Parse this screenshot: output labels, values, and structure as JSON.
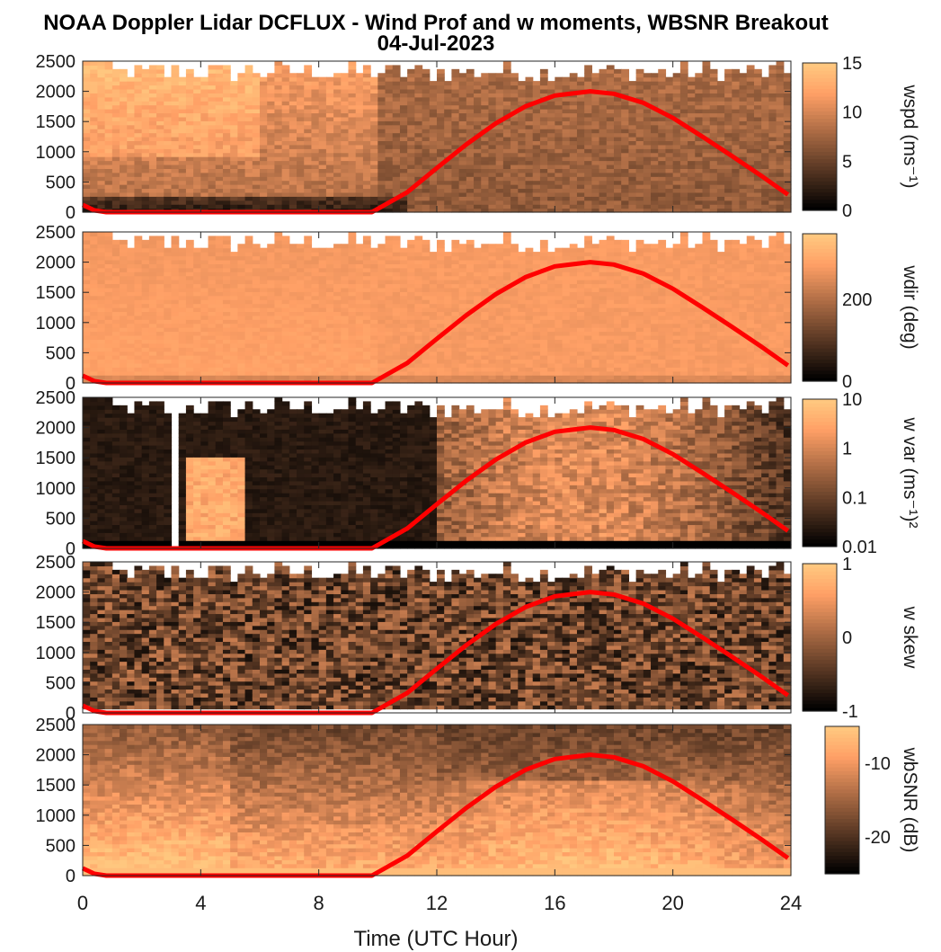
{
  "chart_data": {
    "type": "heatmap",
    "title": "NOAA Doppler Lidar DCFLUX - Wind Prof and w moments, WBSNR Breakout",
    "subtitle": "04-Jul-2023",
    "xlabel": "Time (UTC Hour)",
    "xlim": [
      0,
      24
    ],
    "x_ticks": [
      "0",
      "4",
      "8",
      "12",
      "16",
      "20",
      "24"
    ],
    "ylim": [
      0,
      2500
    ],
    "y_ticks": [
      "0",
      "500",
      "1000",
      "1500",
      "2000",
      "2500"
    ],
    "colormap": "copper",
    "overlay_line": {
      "color": "#ff0000",
      "description_x": [
        0.0,
        0.4,
        0.8,
        2,
        4,
        6,
        8,
        9.8,
        11,
        12,
        13,
        14,
        15,
        16,
        17.2,
        18,
        19,
        20,
        21,
        22,
        23,
        23.9
      ],
      "y": [
        120,
        30,
        0,
        0,
        0,
        0,
        0,
        0,
        330,
        730,
        1120,
        1470,
        1750,
        1930,
        2000,
        1960,
        1810,
        1560,
        1250,
        930,
        600,
        290
      ]
    },
    "panels": [
      {
        "colorbar_label": "wspd (ms⁻¹)",
        "colorbar_ticks": [
          "0",
          "5",
          "10",
          "15"
        ],
        "clim": [
          0,
          15
        ],
        "scale": "linear",
        "mean_field": "high speeds aloft early, weaker near surface 0-10 UTC, moderate 10-24 UTC"
      },
      {
        "colorbar_label": "wdir (deg)",
        "colorbar_ticks": [
          "0",
          "200"
        ],
        "clim": [
          0,
          360
        ],
        "scale": "linear",
        "mean_field": "mostly uniform ~250-300 deg"
      },
      {
        "colorbar_label": "w var (ms⁻¹)²",
        "colorbar_ticks": [
          "0.01",
          "0.1",
          "1",
          "10"
        ],
        "clim": [
          0.01,
          10
        ],
        "scale": "log",
        "mean_field": "low at night, high during daytime mixed layer 13-23 UTC"
      },
      {
        "colorbar_label": "w skew",
        "colorbar_ticks": [
          "-1",
          "0",
          "1"
        ],
        "clim": [
          -1,
          1
        ],
        "scale": "linear",
        "mean_field": "noisy mid-range values"
      },
      {
        "colorbar_label": "wbSNR (dB)",
        "colorbar_ticks": [
          "-20",
          "-10"
        ],
        "clim": [
          -25,
          -5
        ],
        "scale": "linear",
        "mean_field": "high SNR near surface, lower aloft"
      }
    ]
  },
  "colors": {
    "overlay": "#ff0000",
    "missing": "#ffffff",
    "axes": "#262626"
  }
}
